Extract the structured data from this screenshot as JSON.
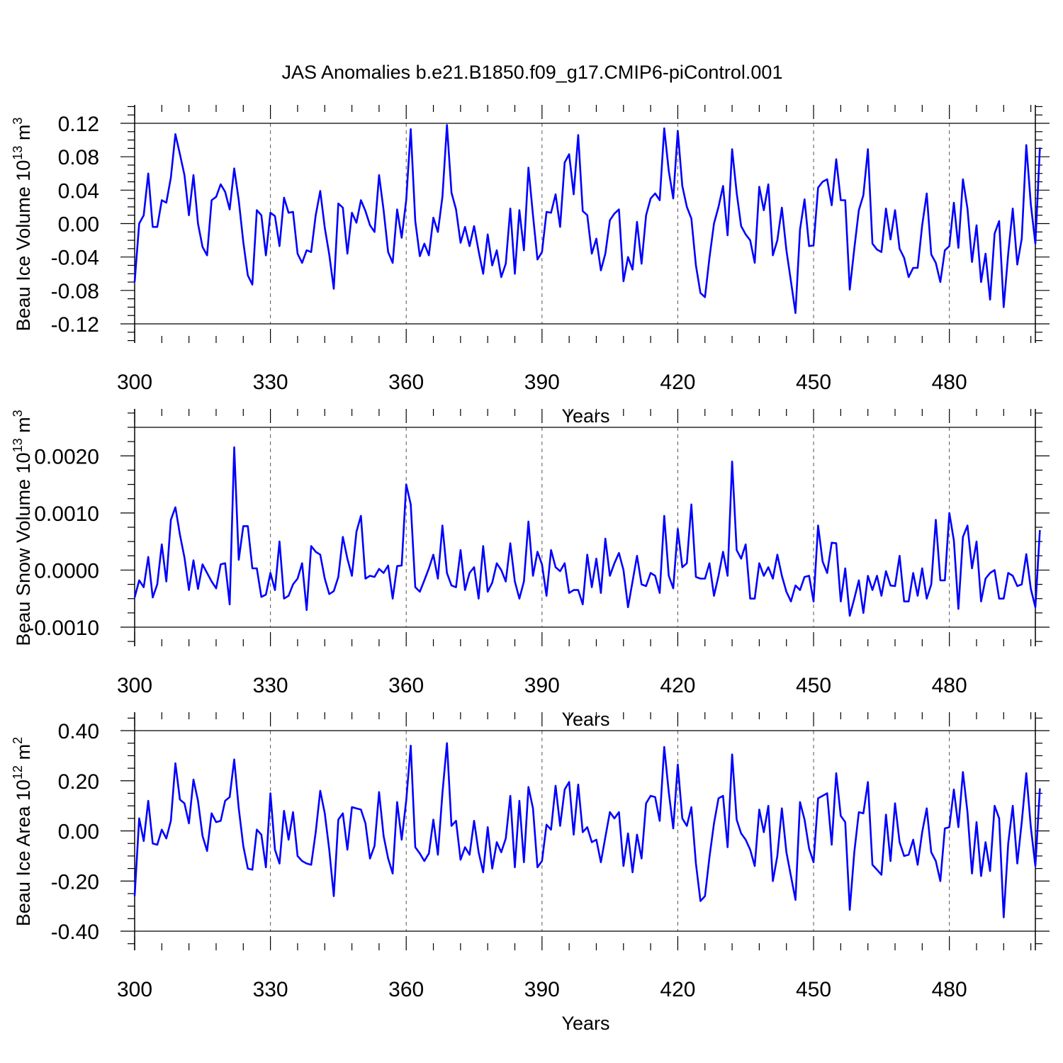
{
  "title": "JAS Anomalies b.e21.B1850.f09_g17.CMIP6-piControl.001",
  "colors": {
    "line": "#0000ff",
    "axis": "#000000",
    "grid": "#555555"
  },
  "chart_data": [
    {
      "type": "line",
      "ylabel": "Beau Ice Volume 10",
      "ylabel_sup_exp": "13",
      "ylabel_unit": " m",
      "ylabel_sup_unit": "3",
      "xlabel": "Years",
      "xlim": [
        300,
        499
      ],
      "ylim": [
        -0.12,
        0.12
      ],
      "xticks": [
        300,
        330,
        360,
        390,
        420,
        450,
        480
      ],
      "xtick_labels": [
        "300",
        "330",
        "360",
        "390",
        "420",
        "450",
        "480"
      ],
      "yticks": [
        -0.12,
        -0.08,
        -0.04,
        0.0,
        0.04,
        0.08,
        0.12
      ],
      "ytick_labels": [
        "-0.12",
        "-0.08",
        "-0.04",
        "0.00",
        "0.04",
        "0.08",
        "0.12"
      ],
      "x_start": 300,
      "values": [
        -0.07,
        0.0,
        0.01,
        0.06,
        -0.004,
        -0.004,
        0.028,
        0.025,
        0.055,
        0.107,
        0.083,
        0.058,
        0.01,
        0.058,
        0.0,
        -0.028,
        -0.038,
        0.028,
        0.032,
        0.047,
        0.038,
        0.017,
        0.066,
        0.028,
        -0.022,
        -0.062,
        -0.073,
        0.016,
        0.01,
        -0.038,
        0.013,
        0.009,
        -0.027,
        0.031,
        0.013,
        0.014,
        -0.036,
        -0.047,
        -0.032,
        -0.034,
        0.01,
        0.039,
        -0.005,
        -0.037,
        -0.078,
        0.024,
        0.019,
        -0.036,
        0.013,
        0.001,
        0.028,
        0.015,
        -0.002,
        -0.01,
        0.058,
        0.016,
        -0.034,
        -0.047,
        0.017,
        -0.017,
        0.028,
        0.113,
        0.003,
        -0.039,
        -0.024,
        -0.038,
        0.007,
        -0.01,
        0.032,
        0.118,
        0.037,
        0.017,
        -0.023,
        -0.004,
        -0.027,
        -0.003,
        -0.033,
        -0.06,
        -0.013,
        -0.05,
        -0.032,
        -0.064,
        -0.048,
        0.018,
        -0.06,
        0.016,
        -0.032,
        0.067,
        0.01,
        -0.043,
        -0.034,
        0.014,
        0.013,
        0.035,
        -0.004,
        0.073,
        0.083,
        0.035,
        0.106,
        0.015,
        0.01,
        -0.036,
        -0.018,
        -0.056,
        -0.036,
        0.004,
        0.012,
        0.017,
        -0.069,
        -0.04,
        -0.055,
        0.002,
        -0.048,
        0.01,
        0.03,
        0.036,
        0.028,
        0.114,
        0.063,
        0.03,
        0.111,
        0.045,
        0.02,
        0.006,
        -0.05,
        -0.083,
        -0.088,
        -0.041,
        0.0,
        0.02,
        0.045,
        -0.014,
        0.089,
        0.037,
        -0.003,
        -0.013,
        -0.02,
        -0.047,
        0.044,
        0.016,
        0.047,
        -0.038,
        -0.02,
        0.019,
        -0.032,
        -0.069,
        -0.107,
        -0.007,
        0.029,
        -0.027,
        -0.026,
        0.043,
        0.05,
        0.053,
        0.022,
        0.077,
        0.028,
        0.028,
        -0.079,
        -0.03,
        0.016,
        0.034,
        0.089,
        -0.024,
        -0.031,
        -0.034,
        0.018,
        -0.019,
        0.016,
        -0.03,
        -0.041,
        -0.064,
        -0.053,
        -0.053,
        -0.002,
        0.036,
        -0.037,
        -0.047,
        -0.07,
        -0.032,
        -0.027,
        0.025,
        -0.029,
        0.053,
        0.018,
        -0.046,
        -0.002,
        -0.07,
        -0.036,
        -0.091,
        -0.012,
        0.003,
        -0.1,
        -0.036,
        0.018,
        -0.049,
        -0.018,
        0.094,
        0.023,
        -0.024,
        0.091
      ]
    },
    {
      "type": "line",
      "ylabel": "Beau Snow Volume 10",
      "ylabel_sup_exp": "13",
      "ylabel_unit": " m",
      "ylabel_sup_unit": "3",
      "xlabel": "Years",
      "xlim": [
        300,
        499
      ],
      "ylim": [
        -0.001,
        0.0025
      ],
      "xticks": [
        300,
        330,
        360,
        390,
        420,
        450,
        480
      ],
      "xtick_labels": [
        "300",
        "330",
        "360",
        "390",
        "420",
        "450",
        "480"
      ],
      "yticks": [
        -0.001,
        0.0,
        0.001,
        0.002
      ],
      "ytick_labels": [
        "-0.0010",
        "0.0000",
        "0.0010",
        "0.0020"
      ],
      "x_start": 300,
      "values": [
        -0.00048,
        -0.00018,
        -0.0003,
        0.00023,
        -0.00048,
        -0.00025,
        0.00045,
        -0.0002,
        0.00088,
        0.0011,
        0.00062,
        0.00022,
        -0.00035,
        0.00017,
        -0.00033,
        0.0001,
        -5e-05,
        -0.0002,
        -0.00032,
        0.0001,
        0.00012,
        -0.0006,
        0.00215,
        0.00018,
        0.00077,
        0.00077,
        3e-05,
        3e-05,
        -0.00047,
        -0.00043,
        -5e-05,
        -0.00035,
        0.0005,
        -0.0005,
        -0.00045,
        -0.00025,
        -0.00015,
        0.00012,
        -0.0007,
        0.00042,
        0.00032,
        0.00027,
        -0.00015,
        -0.00042,
        -0.00037,
        -0.00012,
        0.00058,
        0.0002,
        -0.0001,
        0.00067,
        0.00095,
        -0.00015,
        -0.0001,
        -0.00012,
        2e-05,
        -5e-05,
        8e-05,
        -0.0005,
        7e-05,
        8e-05,
        0.0015,
        0.00115,
        -0.0003,
        -0.00038,
        -0.00018,
        3e-05,
        0.00027,
        -0.00015,
        0.00078,
        -5e-05,
        -0.00027,
        -0.0003,
        0.00035,
        -0.00035,
        -5e-05,
        5e-05,
        -0.0005,
        0.00042,
        -0.00038,
        -0.00022,
        0.00012,
        0.0,
        -0.0002,
        0.00047,
        -0.0002,
        -0.0005,
        -0.0002,
        0.00085,
        -0.0001,
        0.00032,
        0.0001,
        -0.00045,
        0.00035,
        5e-05,
        -2e-05,
        0.00012,
        -0.0004,
        -0.00035,
        -0.00035,
        -0.0006,
        0.00027,
        -0.0003,
        0.0002,
        -0.0004,
        0.00055,
        -0.0001,
        0.00012,
        0.0003,
        0.0,
        -0.00065,
        -0.0002,
        0.00025,
        -0.00025,
        -0.00028,
        -5e-05,
        -0.0001,
        -0.0004,
        0.00095,
        -0.0001,
        -0.00032,
        0.00072,
        5e-05,
        0.00012,
        0.00115,
        -0.00012,
        -0.00015,
        -0.00015,
        0.00012,
        -0.00045,
        -0.0001,
        0.00032,
        -0.0001,
        0.0019,
        0.00035,
        0.0002,
        0.00045,
        -0.0005,
        -0.0005,
        0.00012,
        -0.0001,
        5e-05,
        -0.00015,
        0.00027,
        -0.0001,
        -0.00038,
        -0.00055,
        -0.00027,
        -0.00035,
        -0.00012,
        -0.0001,
        -0.00055,
        0.00078,
        0.00015,
        -5e-05,
        0.00048,
        0.00047,
        -0.00055,
        3e-05,
        -0.0008,
        -0.0005,
        -0.00018,
        -0.00075,
        -0.0001,
        -0.00035,
        -0.0001,
        -0.00045,
        -2e-05,
        -0.00027,
        -0.00028,
        0.00025,
        -0.00055,
        -0.00055,
        -5e-05,
        -0.00045,
        3e-05,
        -0.0005,
        -0.00025,
        0.00088,
        -0.00018,
        -0.00018,
        0.001,
        0.00052,
        -0.00068,
        0.00058,
        0.00078,
        3e-05,
        0.0005,
        -0.00055,
        -0.00015,
        -5e-05,
        0.0,
        -0.0005,
        -0.0005,
        -5e-05,
        -0.0001,
        -0.00028,
        -0.00025,
        0.00028,
        -0.00033,
        -0.00065,
        0.0007
      ]
    },
    {
      "type": "line",
      "ylabel": "Beau Ice Area 10",
      "ylabel_sup_exp": "12",
      "ylabel_unit": " m",
      "ylabel_sup_unit": "2",
      "xlabel": "Years",
      "xlim": [
        300,
        499
      ],
      "ylim": [
        -0.4,
        0.4
      ],
      "xticks": [
        300,
        330,
        360,
        390,
        420,
        450,
        480
      ],
      "xtick_labels": [
        "300",
        "330",
        "360",
        "390",
        "420",
        "450",
        "480"
      ],
      "yticks": [
        -0.4,
        -0.2,
        0.0,
        0.2,
        0.4
      ],
      "ytick_labels": [
        "-0.40",
        "-0.20",
        "0.00",
        "0.20",
        "0.40"
      ],
      "x_start": 300,
      "values": [
        -0.26,
        0.05,
        -0.04,
        0.12,
        -0.05,
        -0.055,
        0.005,
        -0.03,
        0.04,
        0.27,
        0.125,
        0.11,
        0.03,
        0.205,
        0.12,
        -0.02,
        -0.08,
        0.07,
        0.035,
        0.04,
        0.12,
        0.135,
        0.285,
        0.09,
        -0.06,
        -0.15,
        -0.155,
        0.005,
        -0.015,
        -0.145,
        0.15,
        -0.075,
        -0.13,
        0.08,
        -0.035,
        0.075,
        -0.1,
        -0.12,
        -0.13,
        -0.135,
        -0.005,
        0.16,
        0.07,
        -0.075,
        -0.26,
        0.045,
        0.07,
        -0.075,
        0.095,
        0.09,
        0.085,
        0.03,
        -0.11,
        -0.06,
        0.155,
        -0.02,
        -0.11,
        -0.17,
        0.115,
        -0.035,
        0.12,
        0.34,
        -0.065,
        -0.09,
        -0.12,
        -0.09,
        0.045,
        -0.095,
        0.15,
        0.35,
        0.02,
        0.04,
        -0.115,
        -0.065,
        -0.095,
        0.04,
        -0.085,
        -0.165,
        0.015,
        -0.15,
        -0.045,
        -0.085,
        -0.03,
        0.14,
        -0.145,
        0.12,
        -0.125,
        0.175,
        0.09,
        -0.145,
        -0.12,
        0.025,
        0.005,
        0.18,
        0.02,
        0.165,
        0.195,
        -0.015,
        0.185,
        -0.005,
        0.015,
        -0.045,
        -0.035,
        -0.125,
        -0.025,
        0.075,
        0.05,
        0.075,
        -0.14,
        -0.01,
        -0.165,
        -0.015,
        -0.11,
        0.11,
        0.14,
        0.135,
        0.04,
        0.335,
        0.155,
        0.01,
        0.265,
        0.05,
        0.02,
        0.095,
        -0.13,
        -0.28,
        -0.26,
        -0.105,
        0.03,
        0.13,
        0.14,
        -0.065,
        0.305,
        0.045,
        -0.01,
        -0.035,
        -0.075,
        -0.14,
        0.085,
        -0.005,
        0.1,
        -0.2,
        -0.1,
        0.09,
        -0.085,
        -0.18,
        -0.275,
        0.115,
        0.045,
        -0.07,
        -0.125,
        0.13,
        0.14,
        0.15,
        -0.055,
        0.23,
        0.06,
        0.035,
        -0.315,
        -0.085,
        0.075,
        0.07,
        0.195,
        -0.135,
        -0.155,
        -0.175,
        0.065,
        -0.12,
        0.11,
        -0.045,
        -0.1,
        -0.095,
        -0.035,
        -0.135,
        -0.005,
        0.09,
        -0.085,
        -0.12,
        -0.2,
        0.01,
        0.015,
        0.165,
        0.015,
        0.235,
        0.075,
        -0.17,
        0.035,
        -0.18,
        -0.045,
        -0.16,
        0.1,
        0.05,
        -0.345,
        -0.05,
        0.1,
        -0.13,
        0.035,
        0.23,
        0.015,
        -0.14,
        0.17
      ]
    }
  ]
}
